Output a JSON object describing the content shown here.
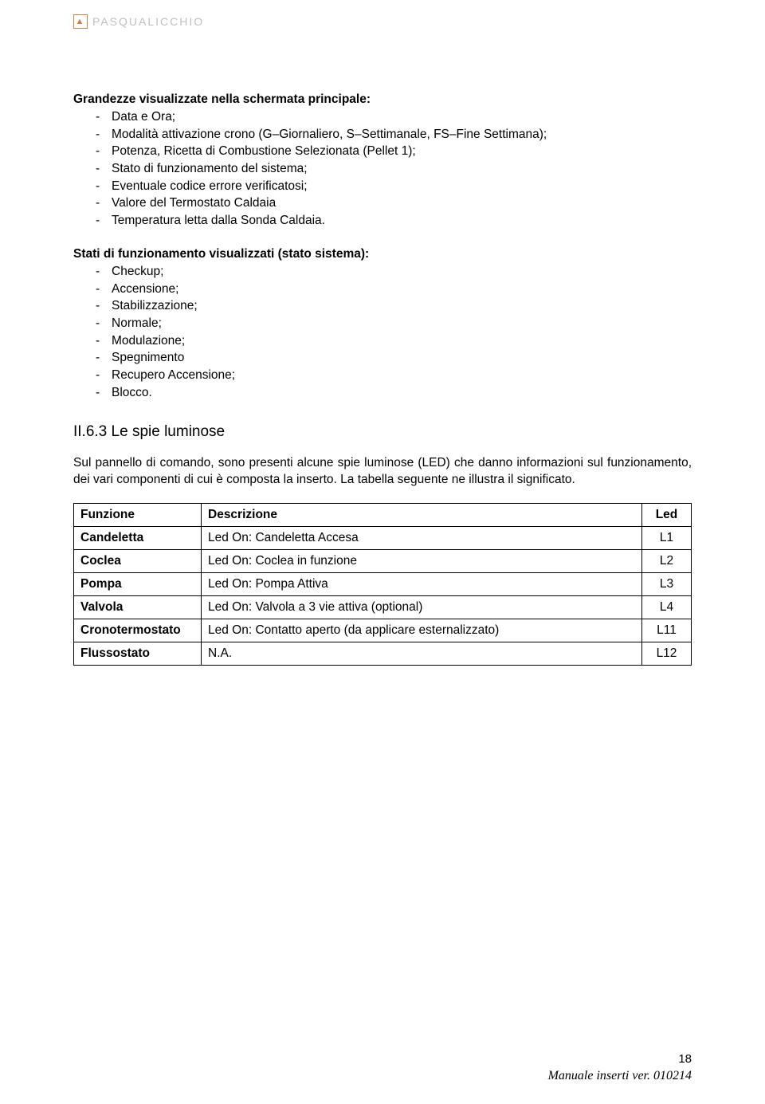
{
  "brand": "PASQUALICCHIO",
  "section1": {
    "title": "Grandezze visualizzate nella schermata principale:",
    "items": [
      "Data e Ora;",
      "Modalità attivazione crono (G–Giornaliero, S–Settimanale, FS–Fine Settimana);",
      "Potenza, Ricetta di Combustione Selezionata (Pellet 1);",
      "Stato di funzionamento del sistema;",
      "Eventuale codice errore verificatosi;",
      "Valore del Termostato Caldaia",
      "Temperatura letta dalla Sonda Caldaia."
    ]
  },
  "section2": {
    "title": "Stati di funzionamento visualizzati (stato sistema):",
    "items": [
      "Checkup;",
      "Accensione;",
      "Stabilizzazione;",
      "Normale;",
      "Modulazione;",
      "Spegnimento",
      "Recupero Accensione;",
      "Blocco."
    ]
  },
  "heading": "II.6.3 Le spie luminose",
  "paragraph": "Sul pannello di comando, sono presenti alcune spie luminose (LED) che danno informazioni sul funzionamento, dei vari componenti di cui è composta la inserto. La tabella seguente ne illustra il significato.",
  "table": {
    "headers": {
      "c0": "Funzione",
      "c1": "Descrizione",
      "c2": "Led"
    },
    "rows": [
      {
        "c0": "Candeletta",
        "c1": "Led On: Candeletta Accesa",
        "c2": "L1"
      },
      {
        "c0": "Coclea",
        "c1": "Led On: Coclea in funzione",
        "c2": "L2"
      },
      {
        "c0": "Pompa",
        "c1": "Led On: Pompa Attiva",
        "c2": "L3"
      },
      {
        "c0": "Valvola",
        "c1": "Led On: Valvola a 3 vie attiva (optional)",
        "c2": "L4"
      },
      {
        "c0": "Cronotermostato",
        "c1": "Led On: Contatto aperto (da applicare esternalizzato)",
        "c2": "L11"
      },
      {
        "c0": "Flussostato",
        "c1": "N.A.",
        "c2": "L12"
      }
    ]
  },
  "footer": {
    "page": "18",
    "line": "Manuale inserti ver. 010214"
  }
}
